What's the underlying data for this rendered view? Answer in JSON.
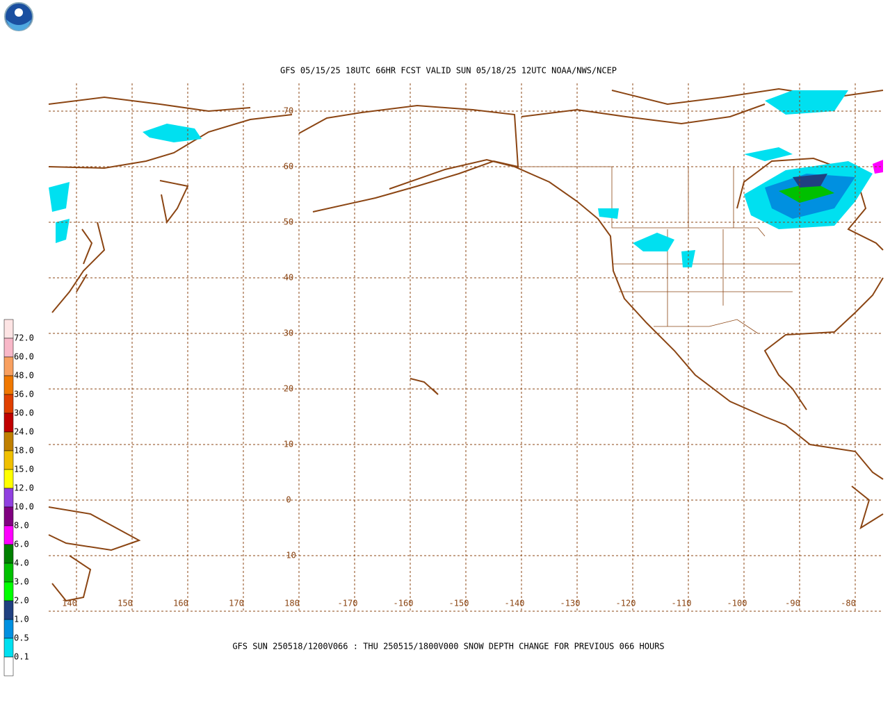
{
  "header": {
    "title": "GFS 05/15/25 18UTC 66HR FCST VALID SUN 05/18/25 12UTC NOAA/NWS/NCEP"
  },
  "map": {
    "lat_labels": [
      "70",
      "60",
      "50",
      "40",
      "30",
      "20",
      "10",
      "0",
      "-10"
    ],
    "lon_labels": [
      "140",
      "150",
      "160",
      "170",
      "180",
      "-170",
      "-160",
      "-150",
      "-140",
      "-130",
      "-120",
      "-110",
      "-100",
      "-90",
      "-80"
    ]
  },
  "caption": "GFS SUN 250518/1200V066 : THU 250515/1800V000 SNOW DEPTH CHANGE FOR PREVIOUS 066 HOURS",
  "legend": {
    "labels": [
      "72.0",
      "60.0",
      "48.0",
      "36.0",
      "30.0",
      "24.0",
      "18.0",
      "15.0",
      "12.0",
      "10.0",
      "8.0",
      "6.0",
      "4.0",
      "3.0",
      "2.0",
      "1.0",
      "0.5",
      "0.1"
    ],
    "colors": [
      "#fde4e4",
      "#f8b8c8",
      "#f8a060",
      "#f07800",
      "#e04000",
      "#c00000",
      "#c08000",
      "#f0c000",
      "#ffff00",
      "#9040e0",
      "#800080",
      "#ff00ff",
      "#008000",
      "#00c000",
      "#00ff00",
      "#204080",
      "#0090e0",
      "#00e0f0",
      "#ffffff"
    ]
  }
}
